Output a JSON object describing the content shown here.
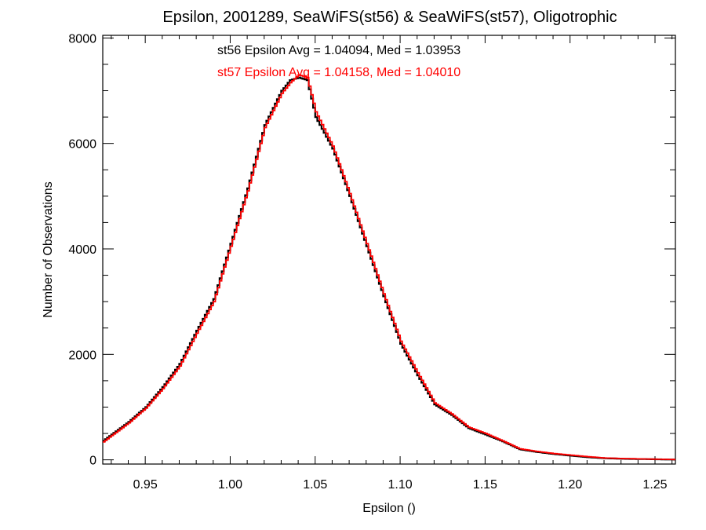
{
  "chart_data": {
    "type": "line",
    "title": "Epsilon, 2001289, SeaWiFS(st56) & SeaWiFS(st57), Oligotrophic",
    "xlabel": "Epsilon ()",
    "ylabel": "Number of Observations",
    "xlim": [
      0.925,
      1.262
    ],
    "ylim": [
      -80,
      8050
    ],
    "x_ticks": [
      0.95,
      1.0,
      1.05,
      1.1,
      1.15,
      1.2,
      1.25
    ],
    "x_tick_labels": [
      "0.95",
      "1.00",
      "1.05",
      "1.10",
      "1.15",
      "1.20",
      "1.25"
    ],
    "y_ticks": [
      0,
      2000,
      4000,
      6000,
      8000
    ],
    "y_tick_labels": [
      "0",
      "2000",
      "4000",
      "6000",
      "8000"
    ],
    "grid": false,
    "annotations": [
      {
        "text": "st56 Epsilon Avg = 1.04094, Med = 1.03953",
        "color": "#000000"
      },
      {
        "text": "st57 Epsilon Avg = 1.04158, Med = 1.04010",
        "color": "#ff0000"
      }
    ],
    "series": [
      {
        "color": "#000000",
        "x": [
          0.925,
          0.94,
          0.95,
          0.96,
          0.97,
          0.98,
          0.99,
          1.0,
          1.01,
          1.02,
          1.03,
          1.035,
          1.04,
          1.045,
          1.05,
          1.06,
          1.07,
          1.08,
          1.09,
          1.1,
          1.11,
          1.12,
          1.13,
          1.14,
          1.15,
          1.16,
          1.17,
          1.18,
          1.19,
          1.2,
          1.21,
          1.22,
          1.23,
          1.24,
          1.25,
          1.262
        ],
        "y": [
          360,
          720,
          1000,
          1380,
          1820,
          2450,
          3050,
          4100,
          5150,
          6350,
          7000,
          7200,
          7250,
          7200,
          6500,
          5900,
          5000,
          4050,
          3100,
          2200,
          1600,
          1050,
          850,
          600,
          480,
          350,
          200,
          150,
          110,
          80,
          50,
          30,
          20,
          15,
          10,
          5
        ]
      },
      {
        "color": "#ff0000",
        "x": [
          0.925,
          0.94,
          0.95,
          0.96,
          0.97,
          0.98,
          0.99,
          1.0,
          1.01,
          1.02,
          1.03,
          1.035,
          1.04,
          1.045,
          1.05,
          1.06,
          1.07,
          1.08,
          1.09,
          1.1,
          1.11,
          1.12,
          1.13,
          1.14,
          1.15,
          1.16,
          1.17,
          1.18,
          1.19,
          1.2,
          1.21,
          1.22,
          1.23,
          1.24,
          1.25,
          1.262
        ],
        "y": [
          340,
          700,
          980,
          1350,
          1780,
          2400,
          3000,
          4050,
          5100,
          6300,
          6950,
          7150,
          7300,
          7250,
          6600,
          5950,
          5050,
          4100,
          3150,
          2250,
          1650,
          1080,
          870,
          620,
          500,
          360,
          210,
          160,
          120,
          90,
          60,
          35,
          25,
          18,
          12,
          6
        ]
      }
    ]
  }
}
